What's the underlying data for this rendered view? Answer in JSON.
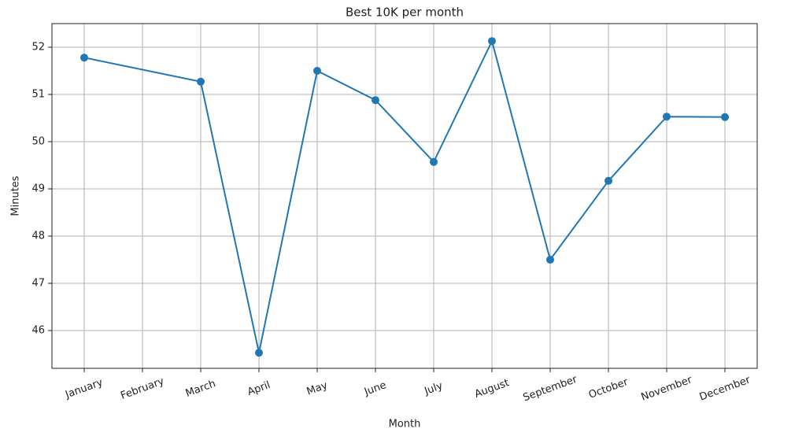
{
  "chart_data": {
    "type": "line",
    "title": "Best 10K per month",
    "x_label": "Month",
    "y_label": "Minutes",
    "categories": [
      "January",
      "February",
      "March",
      "April",
      "May",
      "June",
      "July",
      "August",
      "September",
      "October",
      "November",
      "December"
    ],
    "series": [
      {
        "name": "Best 10K",
        "color": "#1f77b4",
        "values": [
          51.78,
          null,
          51.27,
          45.53,
          51.5,
          50.88,
          49.57,
          52.13,
          47.5,
          49.17,
          50.53,
          50.52
        ]
      }
    ],
    "connect_gaps": true,
    "markers": true,
    "ylim": [
      45.2,
      52.5
    ],
    "yticks": [
      46,
      47,
      48,
      49,
      50,
      51,
      52
    ],
    "grid": true
  }
}
